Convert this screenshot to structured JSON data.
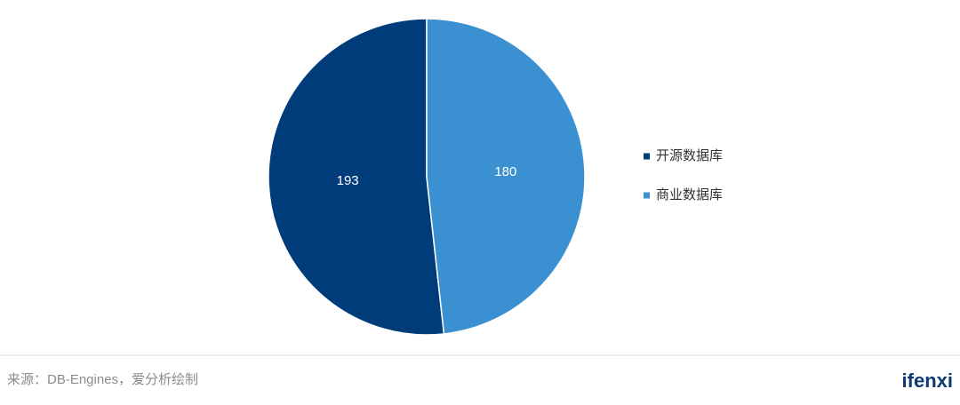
{
  "chart_data": {
    "type": "pie",
    "categories": [
      "开源数据库",
      "商业数据库"
    ],
    "values": [
      193,
      180
    ],
    "colors": [
      "#003b7a",
      "#3b90d2"
    ],
    "legend": "right",
    "source": "来源：DB-Engines，爱分析绘制",
    "logo": "ifenxi"
  }
}
